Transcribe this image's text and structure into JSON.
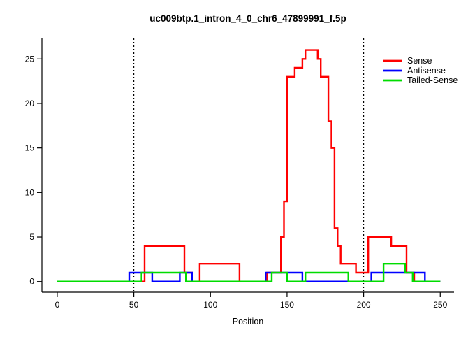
{
  "chart_data": {
    "type": "line",
    "step": true,
    "title": "uc009btp.1_intron_4_0_chr6_47899991_f.5p",
    "xlabel": "Position",
    "ylabel": "",
    "x_range": [
      0,
      250
    ],
    "y_range": [
      0,
      26
    ],
    "x_ticks": [
      0,
      50,
      100,
      150,
      200,
      250
    ],
    "y_ticks": [
      0,
      5,
      10,
      15,
      20,
      25
    ],
    "grid": false,
    "vlines": {
      "positions": [
        50,
        200
      ],
      "style": "dotted",
      "color": "#000000"
    },
    "legend": {
      "position": "top-right",
      "entries": [
        "Sense",
        "Antisense",
        "Tailed-Sense"
      ]
    },
    "series": [
      {
        "name": "Sense",
        "color": "#ff0000",
        "points": [
          [
            0,
            0
          ],
          [
            57,
            4
          ],
          [
            83,
            1
          ],
          [
            88,
            0
          ],
          [
            93,
            2
          ],
          [
            119,
            0
          ],
          [
            137,
            1
          ],
          [
            146,
            5
          ],
          [
            148,
            9
          ],
          [
            150,
            23
          ],
          [
            155,
            24
          ],
          [
            160,
            25
          ],
          [
            162,
            26
          ],
          [
            170,
            25
          ],
          [
            172,
            23
          ],
          [
            177,
            18
          ],
          [
            179,
            15
          ],
          [
            181,
            6
          ],
          [
            183,
            4
          ],
          [
            185,
            2
          ],
          [
            195,
            1
          ],
          [
            203,
            5
          ],
          [
            218,
            4
          ],
          [
            228,
            1
          ],
          [
            233,
            0
          ],
          [
            250,
            0
          ]
        ]
      },
      {
        "name": "Antisense",
        "color": "#0000ff",
        "points": [
          [
            0,
            0
          ],
          [
            47,
            1
          ],
          [
            62,
            0
          ],
          [
            80,
            1
          ],
          [
            88,
            0
          ],
          [
            136,
            1
          ],
          [
            160,
            0
          ],
          [
            205,
            1
          ],
          [
            240,
            0
          ],
          [
            250,
            0
          ]
        ]
      },
      {
        "name": "Tailed-Sense",
        "color": "#00dc00",
        "points": [
          [
            0,
            0
          ],
          [
            55,
            1
          ],
          [
            84,
            0
          ],
          [
            140,
            1
          ],
          [
            150,
            0
          ],
          [
            162,
            1
          ],
          [
            190,
            0
          ],
          [
            213,
            2
          ],
          [
            227,
            1
          ],
          [
            232,
            0
          ],
          [
            250,
            0
          ]
        ]
      }
    ]
  }
}
